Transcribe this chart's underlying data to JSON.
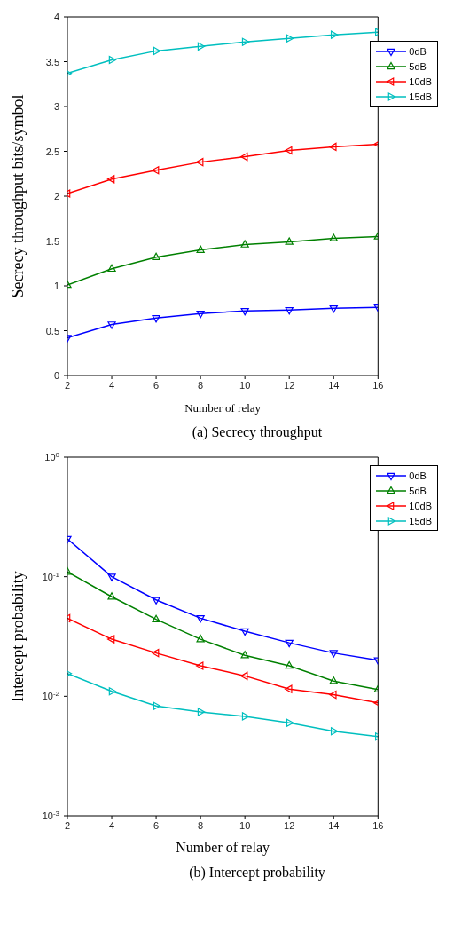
{
  "chart_data": [
    {
      "type": "line",
      "title": "(a) Secrecy throughput",
      "xlabel": "Number of relay",
      "ylabel": "Secrecy throughput bits/symbol",
      "x": [
        2,
        4,
        6,
        8,
        10,
        12,
        14,
        16
      ],
      "xlim": [
        2,
        16
      ],
      "xticks": [
        2,
        4,
        6,
        8,
        10,
        12,
        14,
        16
      ],
      "ylim": [
        0,
        4
      ],
      "yticks": [
        0,
        0.5,
        1,
        1.5,
        2,
        2.5,
        3,
        3.5,
        4
      ],
      "grid": false,
      "legend": "top right",
      "marker": "triangle",
      "line_style": "solid",
      "series": [
        {
          "name": "0dB",
          "color": "#0000ff",
          "values": [
            0.42,
            0.57,
            0.64,
            0.69,
            0.72,
            0.73,
            0.75,
            0.76
          ]
        },
        {
          "name": "5dB",
          "color": "#008000",
          "values": [
            1.01,
            1.19,
            1.32,
            1.4,
            1.46,
            1.49,
            1.53,
            1.55
          ]
        },
        {
          "name": "10dB",
          "color": "#ff0000",
          "values": [
            2.03,
            2.19,
            2.29,
            2.38,
            2.44,
            2.51,
            2.55,
            2.58
          ]
        },
        {
          "name": "15dB",
          "color": "#00bfbf",
          "values": [
            3.37,
            3.52,
            3.62,
            3.67,
            3.72,
            3.76,
            3.8,
            3.83
          ]
        }
      ]
    },
    {
      "type": "line",
      "title": "(b) Intercept probability",
      "xlabel": "Number of relay",
      "ylabel": "Intercept probability",
      "x": [
        2,
        4,
        6,
        8,
        10,
        12,
        14,
        16
      ],
      "xlim": [
        2,
        16
      ],
      "xticks": [
        2,
        4,
        6,
        8,
        10,
        12,
        14,
        16
      ],
      "ylim": [
        0.001,
        1
      ],
      "yticks": [
        {
          "value": 0.001,
          "label": "10$^{-3}$"
        },
        {
          "value": 0.01,
          "label": "10$^{-2}$"
        },
        {
          "value": 0.1,
          "label": "10$^{-1}$"
        },
        {
          "value": 1,
          "label": "10$^{0}$"
        }
      ],
      "log": "y",
      "grid": false,
      "legend": "top right",
      "marker": "triangle",
      "line_style": "solid",
      "series": [
        {
          "name": "0dB",
          "color": "#0000ff",
          "values": [
            0.207,
            0.1,
            0.064,
            0.045,
            0.035,
            0.028,
            0.023,
            0.02
          ]
        },
        {
          "name": "5dB",
          "color": "#008000",
          "values": [
            0.11,
            0.068,
            0.044,
            0.03,
            0.022,
            0.018,
            0.0134,
            0.0114
          ]
        },
        {
          "name": "10dB",
          "color": "#ff0000",
          "values": [
            0.045,
            0.03,
            0.023,
            0.018,
            0.0148,
            0.0115,
            0.0103,
            0.0088
          ]
        },
        {
          "name": "15dB",
          "color": "#00bfbf",
          "values": [
            0.0155,
            0.011,
            0.0083,
            0.0074,
            0.0068,
            0.006,
            0.0051,
            0.0046
          ]
        }
      ]
    }
  ]
}
